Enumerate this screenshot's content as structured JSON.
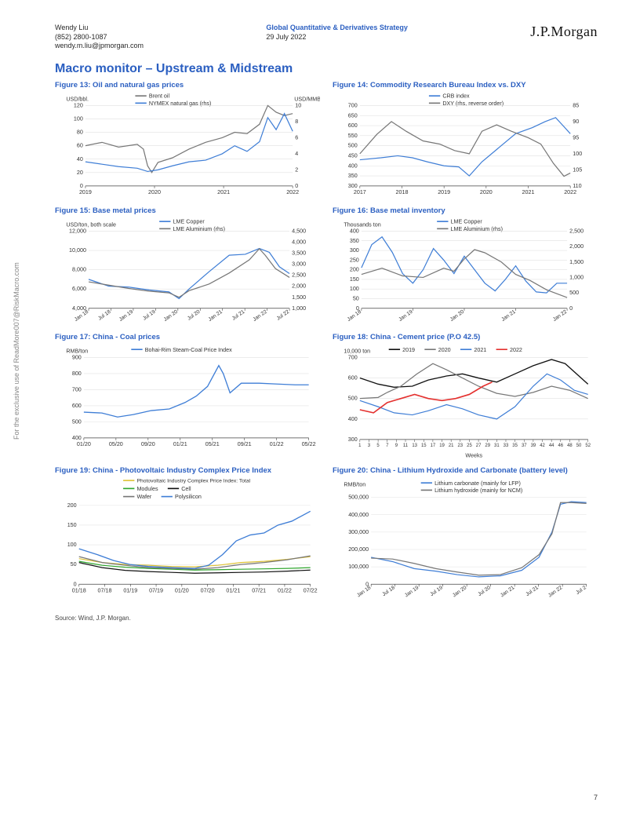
{
  "header": {
    "author": "Wendy Liu",
    "phone": "(852) 2800-1087",
    "email": "wendy.m.liu@jpmorgan.com",
    "report_line": "Global Quantitative & Derivatives Strategy",
    "date": "29 July 2022",
    "brand": "J.P.Morgan"
  },
  "section_title": "Macro monitor – Upstream & Midstream",
  "source_note": "Source: Wind, J.P. Morgan.",
  "sidetext": "For the exclusive use of ReadMore007@RiskMacro.com",
  "page_number": "7",
  "colors": {
    "title_blue": "#2b5fc1",
    "blue": "#3f7ed6",
    "grey": "#777777",
    "grid": "#e1e1e1",
    "axis": "#444444",
    "black": "#111111",
    "red": "#e4312f",
    "green": "#2fa52e",
    "yellow": "#dfc336"
  },
  "fig13": {
    "title": "Figure 13: Oil and natural gas prices",
    "ylabel_left": "USD/bbl.",
    "ylabel_right": "USD/MMBtu",
    "legend": [
      "Brent oil",
      "NYMEX natural gas (rhs)"
    ],
    "x_ticks": [
      "2019",
      "2020",
      "2021",
      "2022"
    ],
    "y_left": {
      "min": 0,
      "max": 120,
      "step": 20
    },
    "y_right": {
      "min": 0,
      "max": 10,
      "step": 2
    },
    "series_brent_color": "#777777",
    "series_gas_color": "#3f7ed6",
    "brent": [
      [
        0,
        60
      ],
      [
        0.08,
        65
      ],
      [
        0.16,
        58
      ],
      [
        0.25,
        62
      ],
      [
        0.28,
        55
      ],
      [
        0.3,
        30
      ],
      [
        0.32,
        20
      ],
      [
        0.35,
        35
      ],
      [
        0.42,
        42
      ],
      [
        0.5,
        55
      ],
      [
        0.58,
        65
      ],
      [
        0.66,
        72
      ],
      [
        0.72,
        80
      ],
      [
        0.78,
        78
      ],
      [
        0.84,
        92
      ],
      [
        0.88,
        120
      ],
      [
        0.92,
        110
      ],
      [
        0.96,
        105
      ],
      [
        1,
        108
      ]
    ],
    "gas": [
      [
        0,
        3.0
      ],
      [
        0.08,
        2.7
      ],
      [
        0.16,
        2.4
      ],
      [
        0.25,
        2.2
      ],
      [
        0.3,
        1.8
      ],
      [
        0.35,
        2.0
      ],
      [
        0.42,
        2.5
      ],
      [
        0.5,
        3.0
      ],
      [
        0.58,
        3.2
      ],
      [
        0.66,
        4.0
      ],
      [
        0.72,
        5.0
      ],
      [
        0.78,
        4.3
      ],
      [
        0.84,
        5.5
      ],
      [
        0.88,
        8.5
      ],
      [
        0.92,
        7.0
      ],
      [
        0.96,
        9.0
      ],
      [
        1,
        6.8
      ]
    ]
  },
  "fig14": {
    "title": "Figure 14: Commodity Research Bureau Index vs. DXY",
    "legend": [
      "CRB index",
      "DXY (rhs, reverse order)"
    ],
    "x_ticks": [
      "2017",
      "2018",
      "2019",
      "2020",
      "2021",
      "2022"
    ],
    "y_left": {
      "min": 300,
      "max": 700,
      "step": 50
    },
    "y_right": {
      "min": 85,
      "max": 110,
      "step": 5
    },
    "crb_color": "#3f7ed6",
    "dxy_color": "#777777",
    "crb": [
      [
        0,
        430
      ],
      [
        0.1,
        440
      ],
      [
        0.18,
        450
      ],
      [
        0.25,
        440
      ],
      [
        0.32,
        420
      ],
      [
        0.4,
        400
      ],
      [
        0.47,
        395
      ],
      [
        0.52,
        350
      ],
      [
        0.58,
        420
      ],
      [
        0.66,
        490
      ],
      [
        0.74,
        560
      ],
      [
        0.82,
        590
      ],
      [
        0.88,
        620
      ],
      [
        0.93,
        640
      ],
      [
        0.97,
        595
      ],
      [
        1,
        560
      ]
    ],
    "dxy": [
      [
        0,
        100
      ],
      [
        0.08,
        94
      ],
      [
        0.15,
        90
      ],
      [
        0.22,
        93
      ],
      [
        0.3,
        96
      ],
      [
        0.38,
        97
      ],
      [
        0.45,
        99
      ],
      [
        0.52,
        100
      ],
      [
        0.58,
        93
      ],
      [
        0.65,
        91
      ],
      [
        0.72,
        93
      ],
      [
        0.8,
        95
      ],
      [
        0.86,
        97
      ],
      [
        0.92,
        103
      ],
      [
        0.97,
        107
      ],
      [
        1,
        106
      ]
    ]
  },
  "fig15": {
    "title": "Figure 15: Base metal prices",
    "ylabel_left": "USD/ton, both scale",
    "legend": [
      "LME Copper",
      "LME Aluminium (rhs)"
    ],
    "x_ticks": [
      "Jan 18",
      "Jul 18",
      "Jan 19",
      "Jul 19",
      "Jan 20",
      "Jul 20",
      "Jan 21",
      "Jul 21",
      "Jan 22",
      "Jul 22"
    ],
    "y_left": {
      "min": 4000,
      "max": 12000,
      "step": 2000
    },
    "y_right": {
      "min": 1000,
      "max": 4500,
      "step": 500
    },
    "cu_color": "#3f7ed6",
    "al_color": "#777777",
    "cu": [
      [
        0,
        7000
      ],
      [
        0.1,
        6300
      ],
      [
        0.2,
        6200
      ],
      [
        0.3,
        5900
      ],
      [
        0.4,
        5700
      ],
      [
        0.45,
        5000
      ],
      [
        0.5,
        6000
      ],
      [
        0.6,
        7800
      ],
      [
        0.7,
        9500
      ],
      [
        0.78,
        9600
      ],
      [
        0.85,
        10200
      ],
      [
        0.9,
        9800
      ],
      [
        0.95,
        8300
      ],
      [
        1,
        7600
      ]
    ],
    "al": [
      [
        0,
        2200
      ],
      [
        0.1,
        2050
      ],
      [
        0.2,
        1900
      ],
      [
        0.3,
        1780
      ],
      [
        0.4,
        1700
      ],
      [
        0.45,
        1500
      ],
      [
        0.5,
        1800
      ],
      [
        0.6,
        2100
      ],
      [
        0.7,
        2600
      ],
      [
        0.8,
        3200
      ],
      [
        0.85,
        3700
      ],
      [
        0.88,
        3400
      ],
      [
        0.93,
        2800
      ],
      [
        1,
        2400
      ]
    ]
  },
  "fig16": {
    "title": "Figure 16: Base metal inventory",
    "ylabel_left": "Thousands ton",
    "legend": [
      "LME Copper",
      "LME Aluminium (rhs)"
    ],
    "x_ticks": [
      "Jan 18",
      "Jan 19",
      "Jan 20",
      "Jan 21",
      "Jan 22"
    ],
    "y_left": {
      "min": 0,
      "max": 400,
      "step": 50
    },
    "y_right": {
      "min": 0,
      "max": 2500,
      "step": 500
    },
    "cu_color": "#3f7ed6",
    "al_color": "#777777",
    "cu": [
      [
        0,
        210
      ],
      [
        0.05,
        330
      ],
      [
        0.1,
        370
      ],
      [
        0.15,
        290
      ],
      [
        0.2,
        180
      ],
      [
        0.25,
        130
      ],
      [
        0.3,
        200
      ],
      [
        0.35,
        310
      ],
      [
        0.4,
        250
      ],
      [
        0.45,
        180
      ],
      [
        0.5,
        270
      ],
      [
        0.55,
        200
      ],
      [
        0.6,
        130
      ],
      [
        0.65,
        90
      ],
      [
        0.7,
        150
      ],
      [
        0.75,
        220
      ],
      [
        0.8,
        140
      ],
      [
        0.85,
        85
      ],
      [
        0.9,
        80
      ],
      [
        0.95,
        130
      ],
      [
        1,
        130
      ]
    ],
    "al": [
      [
        0,
        1100
      ],
      [
        0.1,
        1300
      ],
      [
        0.2,
        1050
      ],
      [
        0.3,
        1000
      ],
      [
        0.4,
        1300
      ],
      [
        0.45,
        1200
      ],
      [
        0.5,
        1600
      ],
      [
        0.55,
        1900
      ],
      [
        0.6,
        1800
      ],
      [
        0.68,
        1500
      ],
      [
        0.75,
        1100
      ],
      [
        0.82,
        900
      ],
      [
        0.9,
        600
      ],
      [
        1,
        350
      ]
    ]
  },
  "fig17": {
    "title": "Figure 17: China - Coal prices",
    "ylabel": "RMB/ton",
    "legend_label": "Bohai-Rim Steam-Coal Price Index",
    "x_ticks": [
      "01/20",
      "05/20",
      "09/20",
      "01/21",
      "05/21",
      "09/21",
      "01/22",
      "05/22"
    ],
    "y": {
      "min": 400,
      "max": 900,
      "step": 100
    },
    "color": "#3f7ed6",
    "data": [
      [
        0,
        560
      ],
      [
        0.08,
        555
      ],
      [
        0.15,
        530
      ],
      [
        0.22,
        545
      ],
      [
        0.3,
        570
      ],
      [
        0.38,
        580
      ],
      [
        0.45,
        620
      ],
      [
        0.5,
        660
      ],
      [
        0.55,
        720
      ],
      [
        0.6,
        850
      ],
      [
        0.62,
        800
      ],
      [
        0.65,
        680
      ],
      [
        0.7,
        740
      ],
      [
        0.78,
        740
      ],
      [
        0.86,
        735
      ],
      [
        0.94,
        730
      ],
      [
        1,
        730
      ]
    ]
  },
  "fig18": {
    "title": "Figure 18: China - Cement price (P.O 42.5)",
    "ylabel": "10,000 ton",
    "legend": [
      "2019",
      "2020",
      "2021",
      "2022"
    ],
    "legend_colors": [
      "#111111",
      "#777777",
      "#3f7ed6",
      "#e4312f"
    ],
    "x_ticks": [
      "1",
      "3",
      "5",
      "7",
      "9",
      "11",
      "13",
      "15",
      "17",
      "19",
      "21",
      "23",
      "25",
      "27",
      "29",
      "31",
      "33",
      "35",
      "37",
      "39",
      "42",
      "44",
      "46",
      "48",
      "50",
      "52"
    ],
    "x_label": "Weeks",
    "y": {
      "min": 300,
      "max": 700,
      "step": 100
    },
    "s2019": [
      [
        0,
        600
      ],
      [
        0.08,
        570
      ],
      [
        0.15,
        555
      ],
      [
        0.23,
        560
      ],
      [
        0.3,
        590
      ],
      [
        0.38,
        610
      ],
      [
        0.45,
        620
      ],
      [
        0.52,
        600
      ],
      [
        0.6,
        580
      ],
      [
        0.68,
        620
      ],
      [
        0.76,
        660
      ],
      [
        0.84,
        690
      ],
      [
        0.9,
        670
      ],
      [
        1,
        570
      ]
    ],
    "s2020": [
      [
        0,
        500
      ],
      [
        0.08,
        505
      ],
      [
        0.12,
        530
      ],
      [
        0.18,
        560
      ],
      [
        0.25,
        620
      ],
      [
        0.32,
        670
      ],
      [
        0.38,
        640
      ],
      [
        0.45,
        600
      ],
      [
        0.52,
        560
      ],
      [
        0.6,
        525
      ],
      [
        0.68,
        510
      ],
      [
        0.76,
        530
      ],
      [
        0.84,
        560
      ],
      [
        0.92,
        540
      ],
      [
        1,
        500
      ]
    ],
    "s2021": [
      [
        0,
        490
      ],
      [
        0.08,
        460
      ],
      [
        0.15,
        430
      ],
      [
        0.23,
        420
      ],
      [
        0.3,
        440
      ],
      [
        0.38,
        470
      ],
      [
        0.45,
        450
      ],
      [
        0.52,
        420
      ],
      [
        0.6,
        400
      ],
      [
        0.68,
        460
      ],
      [
        0.76,
        560
      ],
      [
        0.82,
        620
      ],
      [
        0.88,
        590
      ],
      [
        0.94,
        540
      ],
      [
        1,
        520
      ]
    ],
    "s2022": [
      [
        0,
        445
      ],
      [
        0.06,
        430
      ],
      [
        0.12,
        480
      ],
      [
        0.18,
        500
      ],
      [
        0.24,
        520
      ],
      [
        0.3,
        500
      ],
      [
        0.36,
        490
      ],
      [
        0.42,
        500
      ],
      [
        0.48,
        520
      ],
      [
        0.54,
        560
      ],
      [
        0.58,
        580
      ]
    ]
  },
  "fig19": {
    "title": "Figure 19: China - Photovoltaic Industry Complex Price Index",
    "legend": [
      "Photovoltaic Industry Complex Price Index: Total",
      "Modules",
      "Cell",
      "Wafer",
      "Polysilicon"
    ],
    "legend_colors": [
      "#dfc336",
      "#2fa52e",
      "#111111",
      "#777777",
      "#3f7ed6"
    ],
    "x_ticks": [
      "01/18",
      "07/18",
      "01/19",
      "07/19",
      "01/20",
      "07/20",
      "01/21",
      "07/21",
      "01/22",
      "07/22"
    ],
    "y": {
      "min": 0,
      "max": 200,
      "step": 50
    },
    "total": [
      [
        0,
        65
      ],
      [
        0.1,
        55
      ],
      [
        0.2,
        50
      ],
      [
        0.3,
        48
      ],
      [
        0.4,
        45
      ],
      [
        0.5,
        44
      ],
      [
        0.6,
        48
      ],
      [
        0.7,
        55
      ],
      [
        0.8,
        58
      ],
      [
        0.9,
        63
      ],
      [
        1,
        70
      ]
    ],
    "modules": [
      [
        0,
        58
      ],
      [
        0.1,
        48
      ],
      [
        0.2,
        43
      ],
      [
        0.3,
        40
      ],
      [
        0.4,
        38
      ],
      [
        0.5,
        36
      ],
      [
        0.6,
        37
      ],
      [
        0.7,
        38
      ],
      [
        0.8,
        39
      ],
      [
        0.9,
        40
      ],
      [
        1,
        42
      ]
    ],
    "cell": [
      [
        0,
        55
      ],
      [
        0.1,
        42
      ],
      [
        0.2,
        35
      ],
      [
        0.3,
        32
      ],
      [
        0.4,
        30
      ],
      [
        0.5,
        28
      ],
      [
        0.6,
        29
      ],
      [
        0.7,
        30
      ],
      [
        0.8,
        31
      ],
      [
        0.9,
        33
      ],
      [
        1,
        36
      ]
    ],
    "wafer": [
      [
        0,
        70
      ],
      [
        0.1,
        55
      ],
      [
        0.2,
        48
      ],
      [
        0.3,
        42
      ],
      [
        0.4,
        40
      ],
      [
        0.5,
        38
      ],
      [
        0.6,
        42
      ],
      [
        0.7,
        50
      ],
      [
        0.8,
        55
      ],
      [
        0.9,
        62
      ],
      [
        1,
        72
      ]
    ],
    "poly": [
      [
        0,
        90
      ],
      [
        0.08,
        75
      ],
      [
        0.15,
        60
      ],
      [
        0.22,
        50
      ],
      [
        0.3,
        45
      ],
      [
        0.4,
        42
      ],
      [
        0.5,
        40
      ],
      [
        0.56,
        48
      ],
      [
        0.62,
        75
      ],
      [
        0.68,
        110
      ],
      [
        0.74,
        125
      ],
      [
        0.8,
        130
      ],
      [
        0.86,
        150
      ],
      [
        0.92,
        160
      ],
      [
        1,
        185
      ]
    ]
  },
  "fig20": {
    "title": "Figure 20: China - Lithium Hydroxide and Carbonate (battery level)",
    "ylabel": "RMB/ton",
    "legend": [
      "Lithium carbonate (mainly for LFP)",
      "Lithium hydroxide (mainly for NCM)"
    ],
    "x_ticks": [
      "Jan 18",
      "Jul 18",
      "Jan 19",
      "Jul 19",
      "Jan 20",
      "Jul 20",
      "Jan 21",
      "Jul 21",
      "Jan 22",
      "Jul 2"
    ],
    "y": {
      "min": 0,
      "max": 500000,
      "step": 100000
    },
    "carb_color": "#3f7ed6",
    "hydrox_color": "#777777",
    "carb": [
      [
        0,
        155000
      ],
      [
        0.1,
        130000
      ],
      [
        0.2,
        90000
      ],
      [
        0.3,
        75000
      ],
      [
        0.4,
        55000
      ],
      [
        0.5,
        42000
      ],
      [
        0.6,
        48000
      ],
      [
        0.7,
        80000
      ],
      [
        0.78,
        155000
      ],
      [
        0.84,
        300000
      ],
      [
        0.88,
        460000
      ],
      [
        0.93,
        475000
      ],
      [
        1,
        470000
      ]
    ],
    "hydrox": [
      [
        0,
        150000
      ],
      [
        0.1,
        145000
      ],
      [
        0.2,
        120000
      ],
      [
        0.3,
        90000
      ],
      [
        0.4,
        70000
      ],
      [
        0.5,
        52000
      ],
      [
        0.6,
        55000
      ],
      [
        0.7,
        95000
      ],
      [
        0.78,
        170000
      ],
      [
        0.84,
        290000
      ],
      [
        0.88,
        470000
      ],
      [
        0.93,
        470000
      ],
      [
        1,
        465000
      ]
    ]
  }
}
